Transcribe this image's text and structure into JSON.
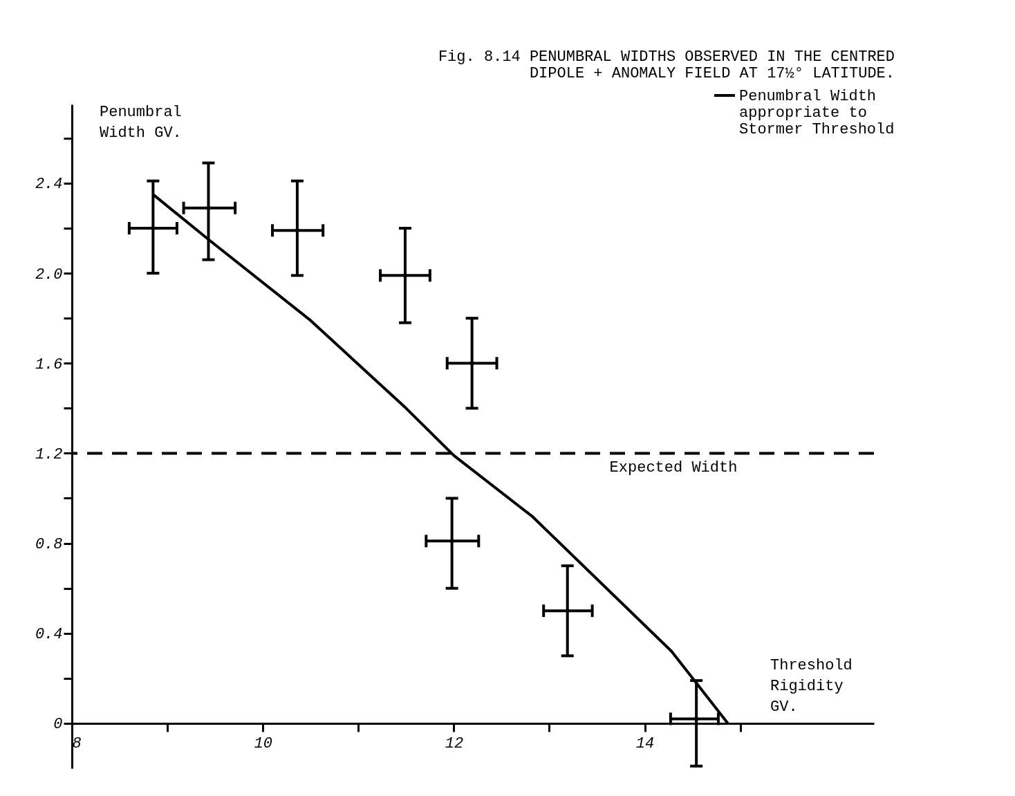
{
  "chart_data": {
    "type": "scatter",
    "title": "Fig. 8.14   PENUMBRAL WIDTHS OBSERVED IN THE CENTRED DIPOLE + ANOMALY FIELD AT 17½° LATITUDE.",
    "xlabel": "Threshold Rigidity GV.",
    "ylabel": "Penumbral Width GV.",
    "xlim": [
      8,
      16.4
    ],
    "ylim": [
      -0.2,
      2.75
    ],
    "xticks": [
      8,
      {
        "value": 9,
        "label": null
      },
      10,
      {
        "value": 11,
        "label": null
      },
      12,
      {
        "value": 13,
        "label": null
      },
      14,
      {
        "value": 15,
        "label": null
      }
    ],
    "yticks": [
      0,
      {
        "value": 0.2,
        "label": null
      },
      0.4,
      {
        "value": 0.6,
        "label": null
      },
      0.8,
      {
        "value": 1.0,
        "label": null
      },
      1.2,
      {
        "value": 1.4,
        "label": null
      },
      1.6,
      {
        "value": 1.8,
        "label": null
      },
      {
        "value": 2.0,
        "label": "2.0"
      },
      {
        "value": 2.2,
        "label": null
      },
      2.4,
      {
        "value": 2.6,
        "label": null
      }
    ],
    "grid": false,
    "legend": "top right",
    "series": [
      {
        "color": "#000000",
        "x": [
          8.85,
          9.43,
          10.36,
          11.49,
          12.19,
          11.98,
          13.19,
          14.54
        ],
        "values": [
          2.2,
          2.29,
          2.19,
          1.99,
          1.6,
          0.81,
          0.5,
          0.02
        ],
        "errors": [
          [
            2.0,
            2.41
          ],
          [
            2.06,
            2.49
          ],
          [
            1.99,
            2.41
          ],
          [
            1.78,
            2.2
          ],
          [
            1.4,
            1.8
          ],
          [
            0.6,
            1.0
          ],
          [
            0.3,
            0.7
          ],
          [
            -0.19,
            0.19
          ]
        ],
        "xerrors": [
          [
            8.6,
            9.1
          ],
          [
            9.17,
            9.71
          ],
          [
            10.1,
            10.63
          ],
          [
            11.23,
            11.75
          ],
          [
            11.93,
            12.45
          ],
          [
            11.71,
            12.26
          ],
          [
            12.94,
            13.45
          ],
          [
            14.27,
            14.77
          ]
        ]
      },
      {
        "type": "line",
        "name": "Penumbral Width appropriate to Stormer Threshold",
        "color": "#000000",
        "line_style": "solid",
        "x": [
          8.85,
          9.43,
          10.5,
          11.5,
          12.0,
          12.82,
          14.28,
          14.87
        ],
        "values": [
          2.35,
          2.15,
          1.79,
          1.4,
          1.19,
          0.92,
          0.32,
          0.0
        ]
      }
    ],
    "ref_lines": [
      {
        "axis": "y",
        "value": 1.2,
        "label": "Expected Width",
        "line_style": "dashed",
        "color": "#000000"
      }
    ]
  }
}
